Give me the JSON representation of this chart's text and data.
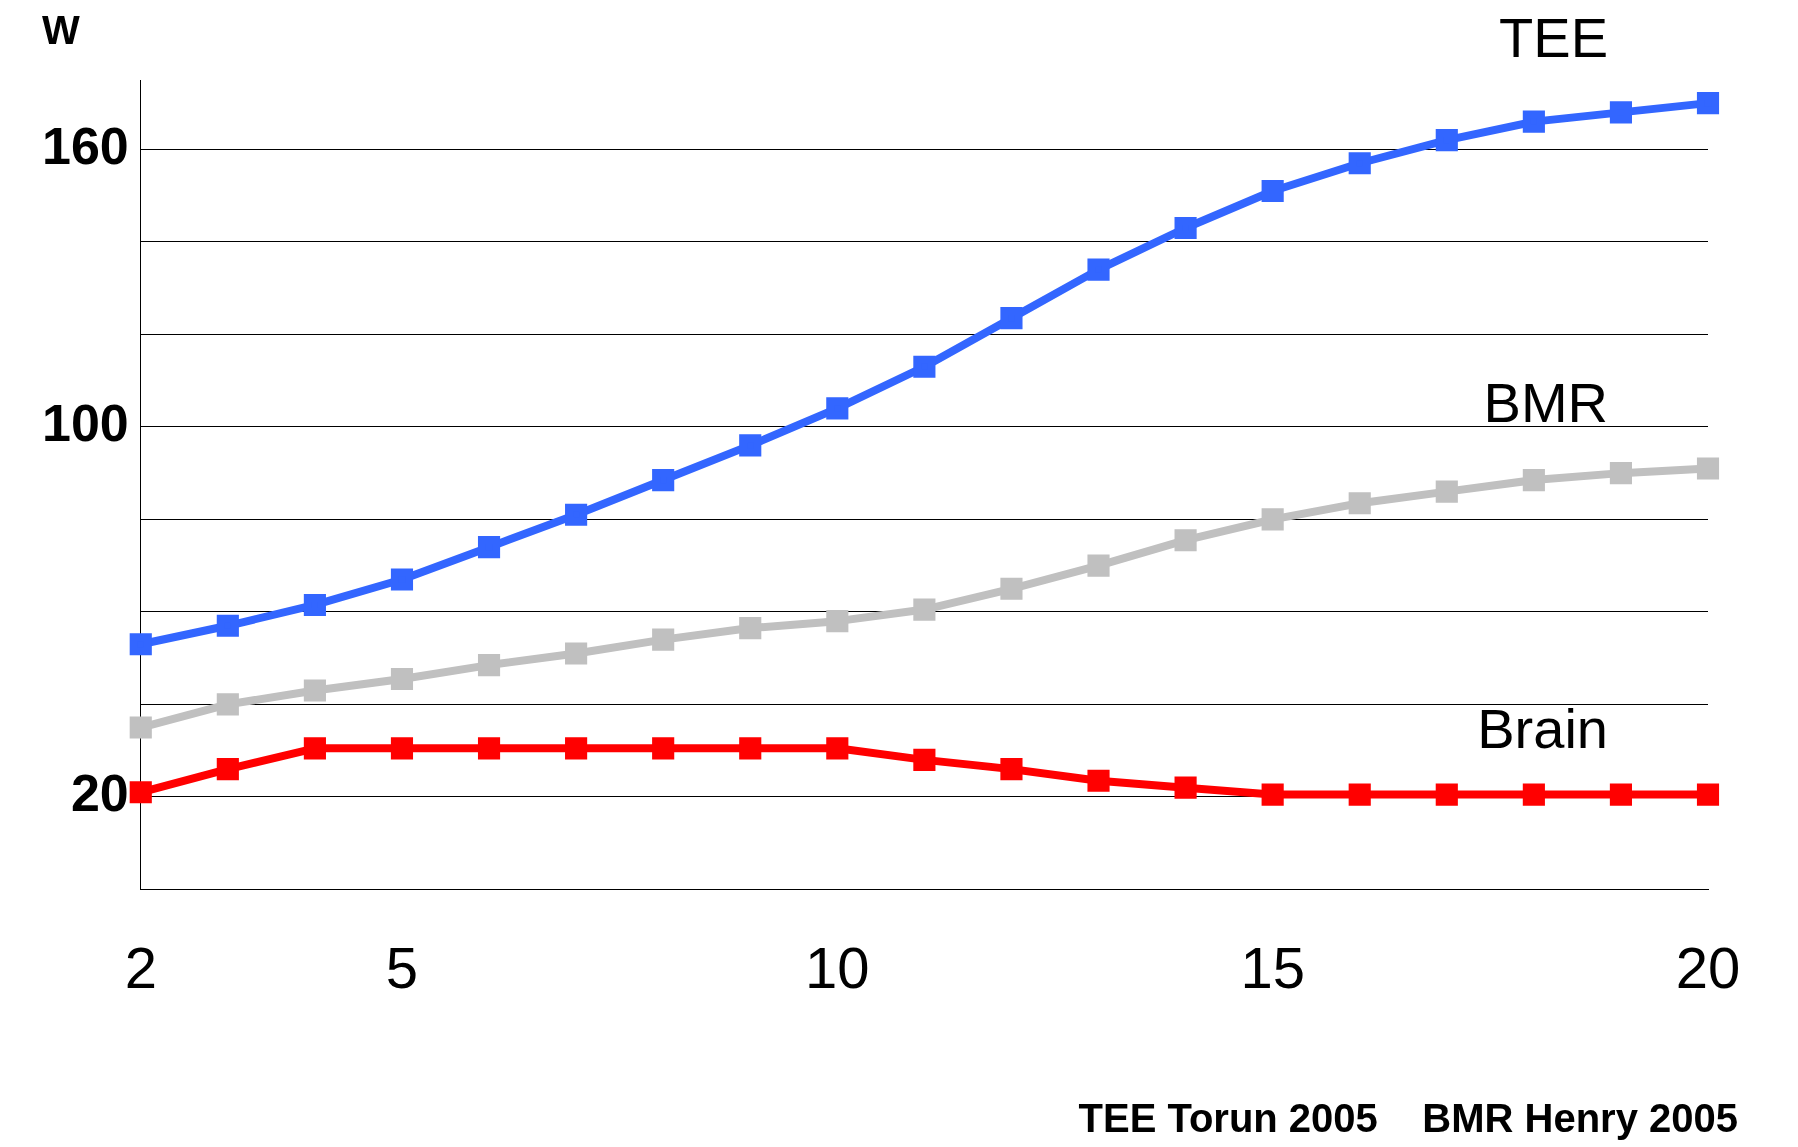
{
  "chart_data": {
    "type": "line",
    "ylabel": "W",
    "x": [
      2,
      3,
      4,
      5,
      6,
      7,
      8,
      9,
      10,
      11,
      12,
      13,
      14,
      15,
      16,
      17,
      18,
      19,
      20
    ],
    "xlim": [
      2,
      20
    ],
    "xticks": [
      2,
      5,
      10,
      15,
      20
    ],
    "ylim": [
      0,
      175
    ],
    "yticks": [
      {
        "value": 0,
        "label": null
      },
      {
        "value": 20,
        "label": "20"
      },
      {
        "value": 40,
        "label": null
      },
      {
        "value": 60,
        "label": null
      },
      {
        "value": 80,
        "label": null
      },
      {
        "value": 100,
        "label": "100"
      },
      {
        "value": 120,
        "label": null
      },
      {
        "value": 140,
        "label": null
      },
      {
        "value": 160,
        "label": "160"
      }
    ],
    "grid": "y",
    "marker": "square",
    "line_style": "solid",
    "series": [
      {
        "name": "TEE",
        "color": "#3366ff",
        "values": [
          53,
          57,
          61.5,
          67,
          74,
          81,
          88.5,
          96,
          104,
          113,
          123.5,
          134,
          143,
          151,
          157,
          162,
          166,
          168,
          170
        ]
      },
      {
        "name": "BMR",
        "color": "#c0c0c0",
        "values": [
          35,
          40,
          43,
          45.5,
          48.5,
          51,
          54,
          56.5,
          58,
          60.5,
          65,
          70,
          75.5,
          80,
          83.5,
          86,
          88.5,
          90,
          91
        ]
      },
      {
        "name": "Brain",
        "color": "#ff0000",
        "values": [
          21,
          26,
          30.5,
          30.5,
          30.5,
          30.5,
          30.5,
          30.5,
          30.5,
          28,
          26,
          23.5,
          22,
          20.5,
          20.5,
          20.5,
          20.5,
          20.5,
          20.5
        ]
      }
    ],
    "annotations": [
      "TEE Torun 2005    BMR Henry 2005"
    ]
  }
}
